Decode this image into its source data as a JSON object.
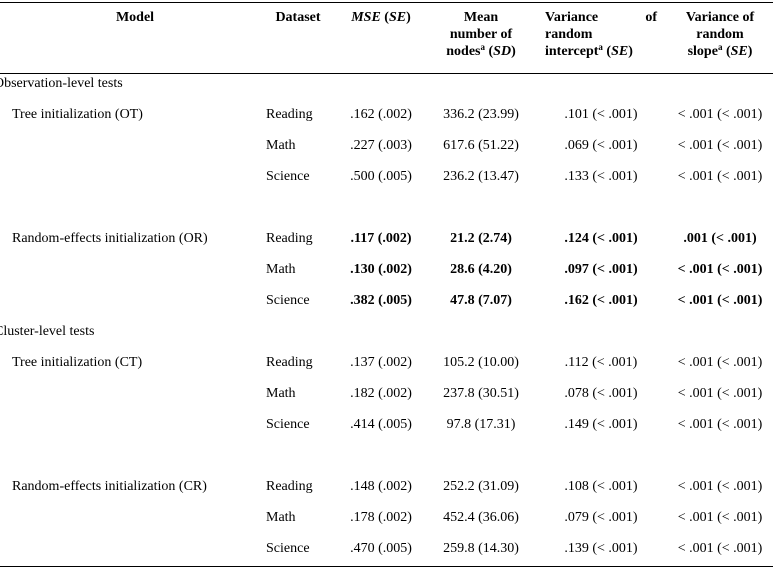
{
  "headers": {
    "model": "Model",
    "dataset": "Dataset",
    "mse_main": "MSE",
    "mse_se": "(SE)",
    "nodes_l1": "Mean",
    "nodes_l2": "number of",
    "nodes_l3": "nodes",
    "nodes_sd": "(SD)",
    "vi_l1_a": "Variance",
    "vi_l1_b": "of",
    "vi_l2": "random",
    "vi_l3": "intercept",
    "vi_se": "(SE)",
    "vs_l1": "Variance of",
    "vs_l2": "random",
    "vs_l3": "slope",
    "vs_se": "(SE)",
    "sup": "a"
  },
  "sections": [
    {
      "label": "Observation-level tests",
      "groups": [
        {
          "label": "Tree initialization (OT)",
          "bold": false,
          "rows": [
            [
              "Reading",
              ".162 (.002)",
              "336.2 (23.99)",
              ".101 (< .001)",
              "< .001 (< .001)"
            ],
            [
              "Math",
              ".227 (.003)",
              "617.6 (51.22)",
              ".069 (< .001)",
              "< .001 (< .001)"
            ],
            [
              "Science",
              ".500 (.005)",
              "236.2 (13.47)",
              ".133 (< .001)",
              "< .001 (< .001)"
            ]
          ]
        },
        {
          "label": "Random-effects initialization (OR)",
          "bold": true,
          "rows": [
            [
              "Reading",
              ".117 (.002)",
              "21.2 (2.74)",
              ".124 (< .001)",
              ".001 (< .001)"
            ],
            [
              "Math",
              ".130 (.002)",
              "28.6 (4.20)",
              ".097 (< .001)",
              "< .001 (< .001)"
            ],
            [
              "Science",
              ".382 (.005)",
              "47.8 (7.07)",
              ".162 (< .001)",
              "< .001 (< .001)"
            ]
          ]
        }
      ]
    },
    {
      "label": "Cluster-level tests",
      "groups": [
        {
          "label": "Tree initialization (CT)",
          "bold": false,
          "rows": [
            [
              "Reading",
              ".137 (.002)",
              "105.2 (10.00)",
              ".112 (< .001)",
              "< .001 (< .001)"
            ],
            [
              "Math",
              ".182 (.002)",
              "237.8 (30.51)",
              ".078 (< .001)",
              "< .001 (< .001)"
            ],
            [
              "Science",
              ".414 (.005)",
              "97.8 (17.31)",
              ".149 (< .001)",
              "< .001 (< .001)"
            ]
          ]
        },
        {
          "label": "Random-effects initialization (CR)",
          "bold": false,
          "rows": [
            [
              "Reading",
              ".148 (.002)",
              "252.2 (31.09)",
              ".108 (< .001)",
              "< .001 (< .001)"
            ],
            [
              "Math",
              ".178 (.002)",
              "452.4 (36.06)",
              ".079 (< .001)",
              "< .001 (< .001)"
            ],
            [
              "Science",
              ".470 (.005)",
              "259.8 (14.30)",
              ".139 (< .001)",
              "< .001 (< .001)"
            ]
          ]
        }
      ]
    }
  ]
}
